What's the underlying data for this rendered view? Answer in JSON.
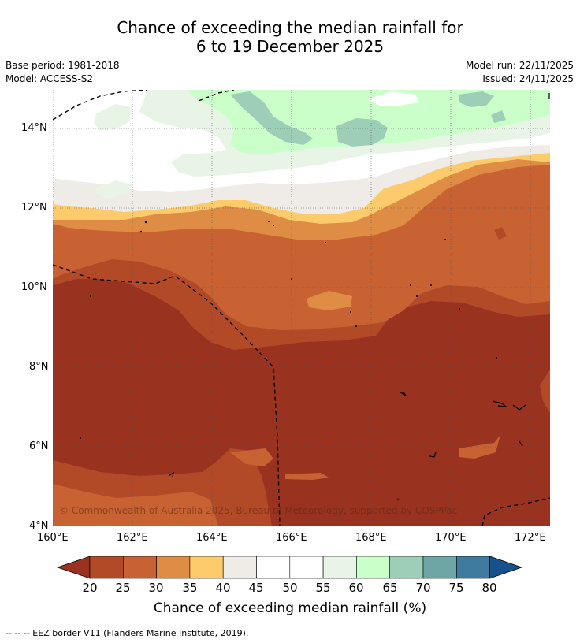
{
  "title_line1": "Chance of exceeding the median rainfall for",
  "title_line2": "6 to 19 December 2025",
  "base_period": "Base period: 1981-2018",
  "model": "Model: ACCESS-S2",
  "model_run": "Model run: 22/11/2025",
  "issued": "Issued: 24/11/2025",
  "copyright": "© Commonwealth of Australia 2025, Bureau of Meteorology, supported by COSPPac",
  "footnote": "--  --  -- EEZ border V11 (Flanders Marine Institute, 2019).",
  "axes": {
    "lat_labels": [
      "14°N",
      "12°N",
      "10°N",
      "8°N",
      "6°N",
      "4°N"
    ],
    "lon_labels": [
      "160°E",
      "162°E",
      "164°E",
      "166°E",
      "168°E",
      "170°E",
      "172°E"
    ],
    "lat_range": [
      4,
      15
    ],
    "lon_range": [
      160,
      172.5
    ]
  },
  "colorbar": {
    "title": "Chance of exceeding median rainfall (%)",
    "ticks": [
      "20",
      "25",
      "30",
      "35",
      "40",
      "45",
      "50",
      "55",
      "60",
      "65",
      "70",
      "75",
      "80"
    ],
    "colors": {
      "below_20": "#9a3220",
      "20_25": "#b24a28",
      "25_30": "#c96232",
      "30_35": "#df8d45",
      "35_40": "#fdcb6b",
      "40_45": "#efebe7",
      "45_50": "#ffffff",
      "50_55": "#ffffff",
      "55_60": "#e8f5e6",
      "60_65": "#caffca",
      "65_70": "#9dcfb8",
      "70_75": "#6ea6a5",
      "75_80": "#3e7b9f",
      "above_80": "#17518b"
    }
  }
}
